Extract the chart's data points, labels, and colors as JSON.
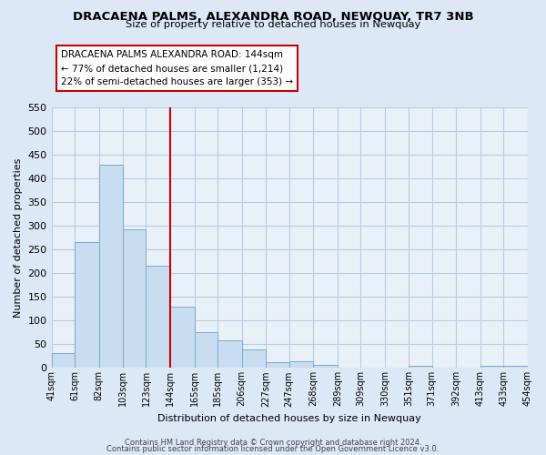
{
  "title": "DRACAENA PALMS, ALEXANDRA ROAD, NEWQUAY, TR7 3NB",
  "subtitle": "Size of property relative to detached houses in Newquay",
  "xlabel": "Distribution of detached houses by size in Newquay",
  "ylabel": "Number of detached properties",
  "bar_color": "#c8ddf0",
  "bar_edge_color": "#7aaacf",
  "reference_line_x": 144,
  "reference_line_color": "#cc0000",
  "bin_edges": [
    41,
    61,
    82,
    103,
    123,
    144,
    165,
    185,
    206,
    227,
    247,
    268,
    289,
    309,
    330,
    351,
    371,
    392,
    413,
    433,
    454
  ],
  "bin_labels": [
    "41sqm",
    "61sqm",
    "82sqm",
    "103sqm",
    "123sqm",
    "144sqm",
    "165sqm",
    "185sqm",
    "206sqm",
    "227sqm",
    "247sqm",
    "268sqm",
    "289sqm",
    "309sqm",
    "330sqm",
    "351sqm",
    "371sqm",
    "392sqm",
    "413sqm",
    "433sqm",
    "454sqm"
  ],
  "counts": [
    32,
    265,
    428,
    293,
    215,
    130,
    76,
    59,
    40,
    12,
    15,
    7,
    0,
    0,
    0,
    5,
    0,
    0,
    4,
    4
  ],
  "ylim": [
    0,
    550
  ],
  "yticks": [
    0,
    50,
    100,
    150,
    200,
    250,
    300,
    350,
    400,
    450,
    500,
    550
  ],
  "annotation_title": "DRACAENA PALMS ALEXANDRA ROAD: 144sqm",
  "annotation_line1": "← 77% of detached houses are smaller (1,214)",
  "annotation_line2": "22% of semi-detached houses are larger (353) →",
  "footer1": "Contains HM Land Registry data © Crown copyright and database right 2024.",
  "footer2": "Contains public sector information licensed under the Open Government Licence v3.0.",
  "bg_color": "#dce8f5",
  "plot_bg_color": "#e8f0f8",
  "grid_color": "#b8cce0"
}
